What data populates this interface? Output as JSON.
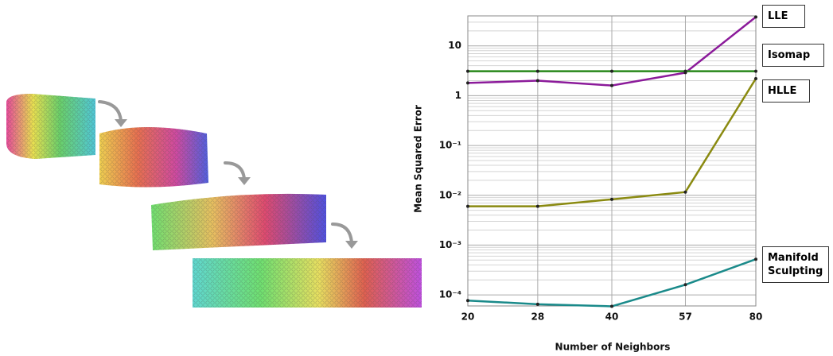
{
  "chart_data": {
    "type": "line",
    "ylabel": "Mean Squared Error",
    "xlabel": "Number of Neighbors",
    "x": [
      20,
      28,
      40,
      57,
      80
    ],
    "xlim": [
      20,
      80
    ],
    "xticks": [
      20,
      28,
      40,
      57,
      80
    ],
    "xscale": "log",
    "ylim": [
      6e-05,
      40
    ],
    "yscale": "log",
    "yticks": [
      {
        "value": 0.0001,
        "label": "10⁻⁴"
      },
      {
        "value": 0.001,
        "label": "10⁻³"
      },
      {
        "value": 0.01,
        "label": "10⁻²"
      },
      {
        "value": 0.1,
        "label": "10⁻¹"
      },
      1,
      10
    ],
    "grid": true,
    "minor_grid": true,
    "series": [
      {
        "name": "LLE",
        "color": "#8b1a9a",
        "values": [
          1.8,
          2.0,
          1.6,
          2.9,
          38
        ]
      },
      {
        "name": "Isomap",
        "color": "#2a8a1c",
        "values": [
          3.1,
          3.1,
          3.1,
          3.1,
          3.1
        ]
      },
      {
        "name": "HLLE",
        "color": "#8a8a10",
        "values": [
          0.006,
          0.006,
          0.0083,
          0.0116,
          2.2
        ]
      },
      {
        "name": "Manifold Sculpting",
        "color": "#1a8a8a",
        "values": [
          7.7e-05,
          6.5e-05,
          5.9e-05,
          0.00016,
          0.00052
        ]
      }
    ]
  }
}
